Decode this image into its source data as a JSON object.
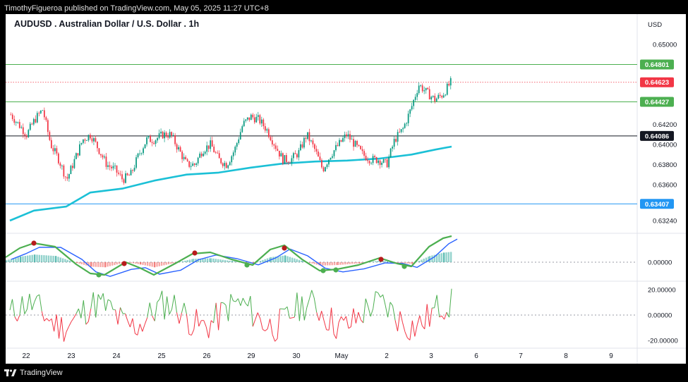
{
  "header": {
    "publish_line": "TimothyFigueroa published on TradingView.com, May 05, 2025 11:27 UTC+8"
  },
  "footer": {
    "brand": "TradingView",
    "logo_icon": "tradingview-logo-icon"
  },
  "chart_data": {
    "type": "candlestick",
    "title": "AUDUSD . Australian Dollar / U.S. Dollar . 1h",
    "currency": "USD",
    "x_labels": [
      "22",
      "23",
      "24",
      "25",
      "26",
      "29",
      "30",
      "May",
      "2",
      "3",
      "6",
      "7",
      "8",
      "9"
    ],
    "price_axis": {
      "ticks": [
        "0.65000",
        "0.64200",
        "0.64000",
        "0.63800",
        "0.63600",
        "0.63240"
      ],
      "ylim": [
        0.6312,
        0.6522
      ]
    },
    "horizontal_levels": [
      {
        "value": 0.64801,
        "label": "0.64801",
        "color": "#4caf50",
        "style": "solid"
      },
      {
        "value": 0.64623,
        "label": "0.64623",
        "color": "#f23645",
        "style": "dotted"
      },
      {
        "value": 0.64427,
        "label": "0.64427",
        "color": "#4caf50",
        "style": "solid"
      },
      {
        "value": 0.64086,
        "label": "0.64086",
        "color": "#131722",
        "style": "solid"
      },
      {
        "value": 0.63407,
        "label": "0.63407",
        "color": "#2196f3",
        "style": "solid"
      }
    ],
    "last_price": 0.64623,
    "close_path": [
      [
        0,
        0.643
      ],
      [
        1,
        0.642
      ],
      [
        2,
        0.641
      ],
      [
        3,
        0.6425
      ],
      [
        4,
        0.6435
      ],
      [
        5,
        0.64
      ],
      [
        6,
        0.6385
      ],
      [
        7,
        0.6365
      ],
      [
        8,
        0.6385
      ],
      [
        9,
        0.6405
      ],
      [
        10,
        0.641
      ],
      [
        11,
        0.6395
      ],
      [
        12,
        0.638
      ],
      [
        13,
        0.6375
      ],
      [
        14,
        0.6365
      ],
      [
        15,
        0.637
      ],
      [
        16,
        0.639
      ],
      [
        17,
        0.6405
      ],
      [
        18,
        0.6405
      ],
      [
        19,
        0.641
      ],
      [
        20,
        0.641
      ],
      [
        21,
        0.6395
      ],
      [
        22,
        0.638
      ],
      [
        23,
        0.638
      ],
      [
        24,
        0.6395
      ],
      [
        25,
        0.64
      ],
      [
        26,
        0.6385
      ],
      [
        27,
        0.638
      ],
      [
        28,
        0.6395
      ],
      [
        29,
        0.642
      ],
      [
        30,
        0.6428
      ],
      [
        31,
        0.6425
      ],
      [
        32,
        0.6415
      ],
      [
        33,
        0.64
      ],
      [
        34,
        0.6385
      ],
      [
        35,
        0.6385
      ],
      [
        36,
        0.6392
      ],
      [
        37,
        0.641
      ],
      [
        38,
        0.6395
      ],
      [
        39,
        0.6375
      ],
      [
        40,
        0.639
      ],
      [
        41,
        0.64
      ],
      [
        42,
        0.641
      ],
      [
        43,
        0.64
      ],
      [
        44,
        0.639
      ],
      [
        45,
        0.6385
      ],
      [
        46,
        0.6385
      ],
      [
        47,
        0.638
      ],
      [
        48,
        0.6405
      ],
      [
        49,
        0.6415
      ],
      [
        50,
        0.6435
      ],
      [
        51,
        0.646
      ],
      [
        52,
        0.6452
      ],
      [
        53,
        0.6445
      ],
      [
        54,
        0.645
      ],
      [
        55,
        0.6462
      ]
    ],
    "total_slots": 70,
    "moving_average": [
      [
        0,
        0.6324
      ],
      [
        3,
        0.6334
      ],
      [
        7,
        0.6338
      ],
      [
        10,
        0.6352
      ],
      [
        14,
        0.6356
      ],
      [
        18,
        0.6364
      ],
      [
        22,
        0.637
      ],
      [
        26,
        0.6372
      ],
      [
        30,
        0.6377
      ],
      [
        34,
        0.6381
      ],
      [
        38,
        0.6383
      ],
      [
        42,
        0.6384
      ],
      [
        46,
        0.6386
      ],
      [
        50,
        0.639
      ],
      [
        53,
        0.6395
      ],
      [
        55,
        0.6398
      ]
    ],
    "oscillator": {
      "zero_label": "0.00000"
    },
    "momentum": {
      "ticks": [
        "20.00000",
        "0.00000",
        "-20.00000"
      ],
      "ylim": [
        -25,
        25
      ]
    }
  }
}
